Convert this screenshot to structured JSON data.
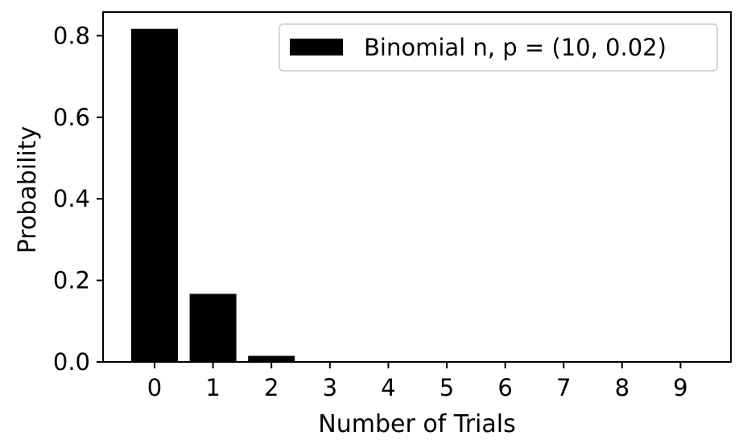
{
  "chart_data": {
    "type": "bar",
    "categories": [
      "0",
      "1",
      "2",
      "3",
      "4",
      "5",
      "6",
      "7",
      "8",
      "9"
    ],
    "series": [
      {
        "name": "Binomial n, p = (10, 0.02)",
        "values": [
          0.817,
          0.167,
          0.015,
          0.001,
          0.0,
          0.0,
          0.0,
          0.0,
          0.0,
          0.0
        ],
        "color": "#000000"
      }
    ],
    "xlabel": "Number of Trials",
    "ylabel": "Probability",
    "ylim": [
      0,
      0.858
    ],
    "yticks": [
      "0.0",
      "0.2",
      "0.4",
      "0.6",
      "0.8"
    ],
    "ytick_values": [
      0.0,
      0.2,
      0.4,
      0.6,
      0.8
    ],
    "grid": false,
    "legend_position": "top-right"
  }
}
